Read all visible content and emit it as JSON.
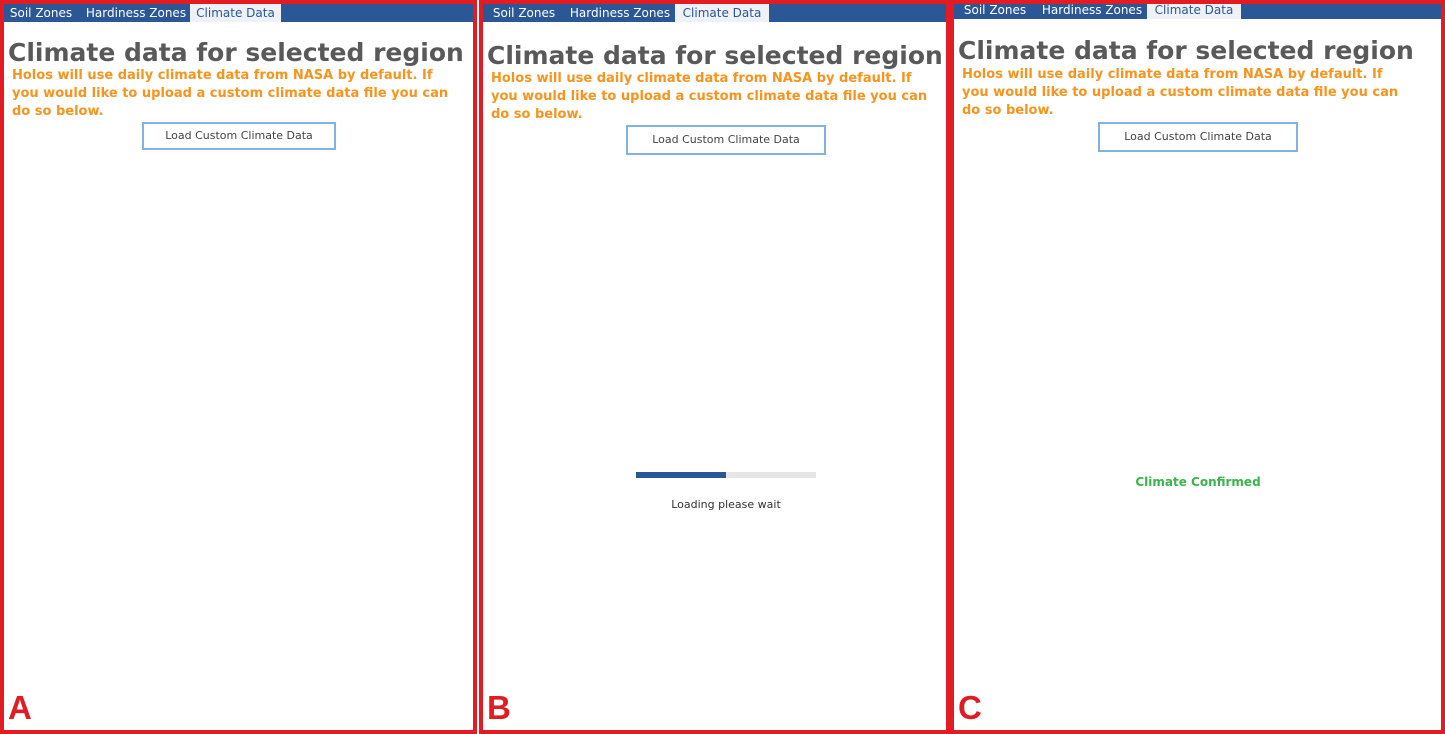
{
  "tabs": [
    "Soil Zones",
    "Hardiness Zones",
    "Climate Data"
  ],
  "active_tab": "Climate Data",
  "title": "Climate data for selected region",
  "description": "Holos will use daily climate data from NASA by default. If you would like to upload a custom climate data file you can do so below.",
  "load_button_label": "Load Custom Climate Data",
  "panels": [
    {
      "letter": "A"
    },
    {
      "letter": "B",
      "progress_fraction": 0.5,
      "loading_text": "Loading please wait"
    },
    {
      "letter": "C",
      "status_text": "Climate Confirmed"
    }
  ],
  "colors": {
    "panel_border": "#e31b23",
    "tabbar": "#2b5797",
    "title": "#595959",
    "description": "#f7941d",
    "button_border": "#7fb2e5",
    "progress": "#2b5797",
    "confirmed": "#39b54a"
  }
}
